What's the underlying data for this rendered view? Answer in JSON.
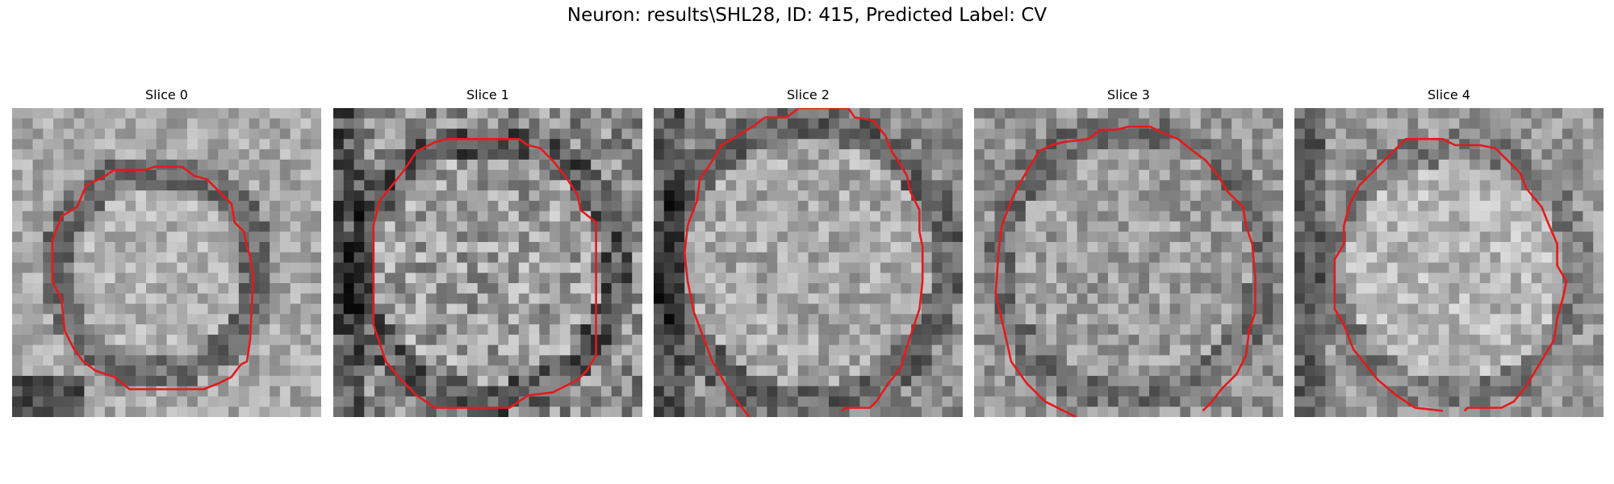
{
  "figure": {
    "title": "Neuron: results\\SHL28, ID: 415, Predicted Label: CV"
  },
  "contour_color": "#e41a1c",
  "panels": [
    {
      "title": "Slice 0"
    },
    {
      "title": "Slice 1"
    },
    {
      "title": "Slice 2"
    },
    {
      "title": "Slice 3"
    },
    {
      "title": "Slice 4"
    }
  ]
}
